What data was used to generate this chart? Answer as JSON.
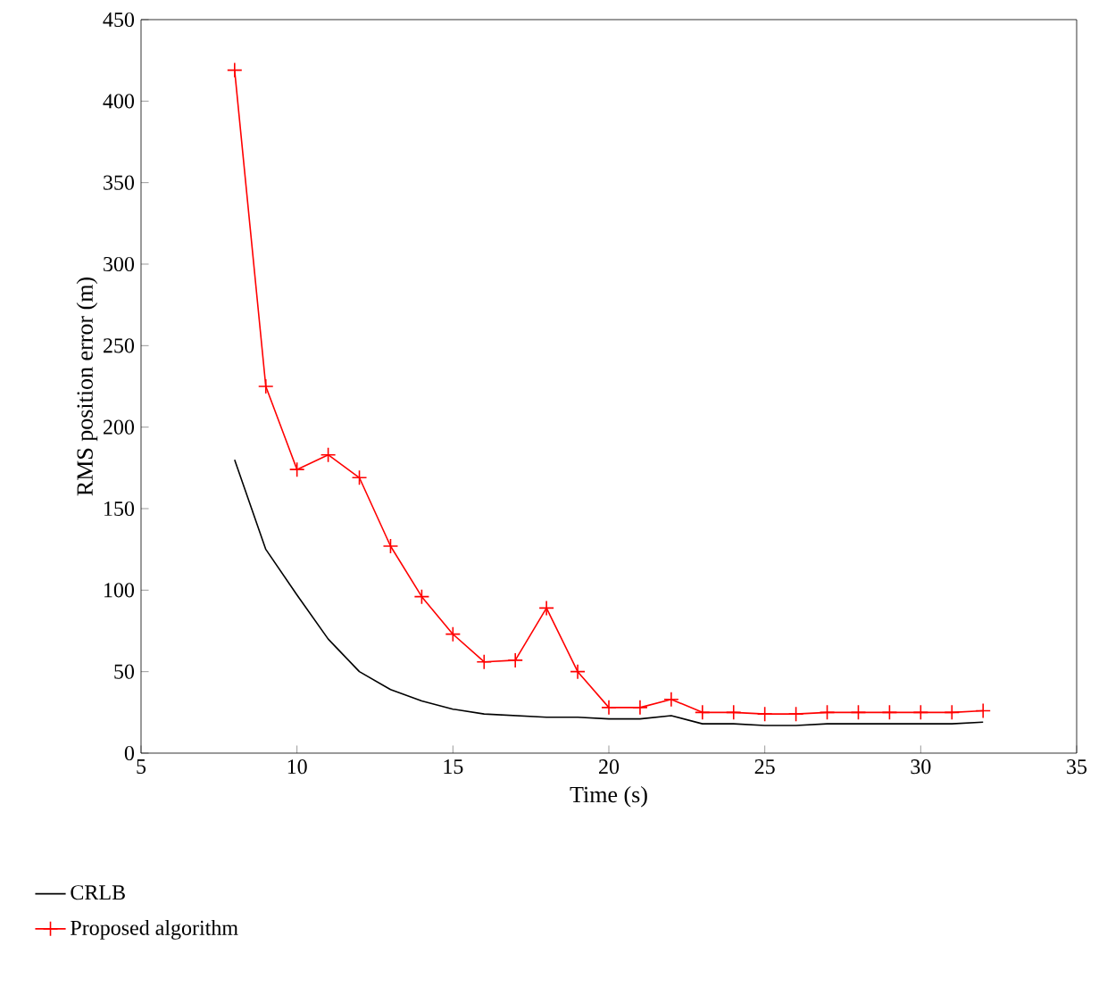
{
  "chart_data": {
    "type": "line",
    "xlabel": "Time (s)",
    "ylabel": "RMS position error (m)",
    "xlim": [
      5,
      35
    ],
    "xticks": [
      5,
      10,
      15,
      20,
      25,
      30,
      35
    ],
    "ylim": [
      0,
      450
    ],
    "yticks": [
      0,
      50,
      100,
      150,
      200,
      250,
      300,
      350,
      400,
      450
    ],
    "legend": "bottom",
    "grid": false,
    "x": [
      8,
      9,
      10,
      11,
      12,
      13,
      14,
      15,
      16,
      17,
      18,
      19,
      20,
      21,
      22,
      23,
      24,
      25,
      26,
      27,
      28,
      29,
      30,
      31,
      32
    ],
    "series": [
      {
        "name": "CRLB",
        "color": "#000000",
        "marker": "none",
        "values": [
          180,
          125,
          97,
          70,
          50,
          39,
          32,
          27,
          24,
          23,
          22,
          22,
          21,
          21,
          23,
          18,
          18,
          17,
          17,
          18,
          18,
          18,
          18,
          18,
          19
        ]
      },
      {
        "name": "Proposed algorithm",
        "color": "#ff0000",
        "marker": "cross",
        "values": [
          419,
          225,
          174,
          183,
          169,
          127,
          96,
          73,
          56,
          57,
          89,
          50,
          28,
          28,
          33,
          25,
          25,
          24,
          24,
          25,
          25,
          25,
          25,
          25,
          26
        ]
      }
    ]
  }
}
